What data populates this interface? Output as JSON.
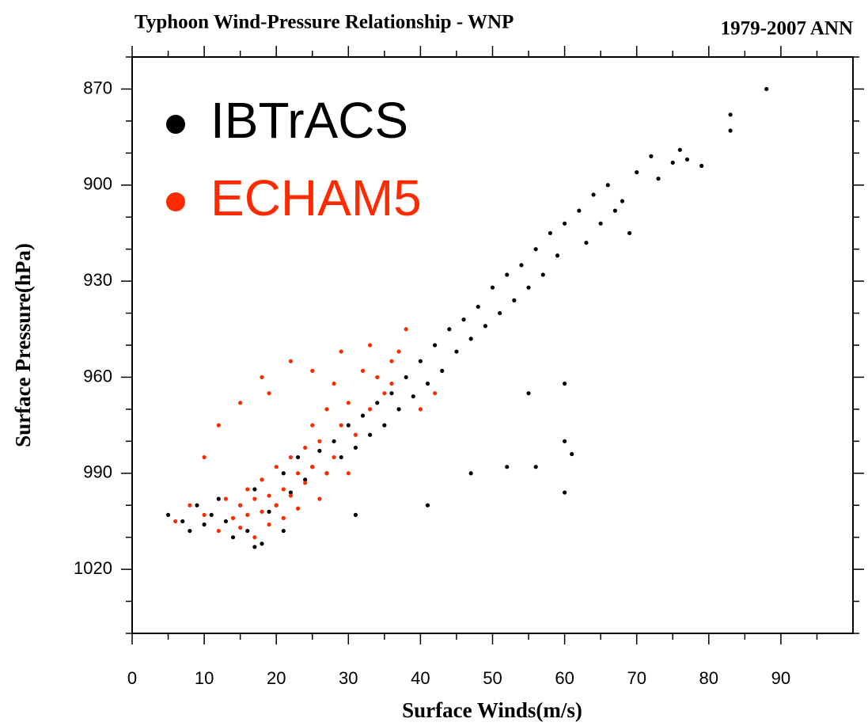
{
  "chart_data": {
    "type": "scatter",
    "title": "Typhoon Wind-Pressure Relationship - WNP",
    "subtitle": "1979-2007 ANN",
    "x_label": "Surface Winds(m/s)",
    "y_label": "Surface Pressure(hPa)",
    "xlim": [
      0,
      100
    ],
    "ylim": [
      1040,
      860
    ],
    "xticks": [
      0,
      10,
      20,
      30,
      40,
      50,
      60,
      70,
      80,
      90
    ],
    "yticks": [
      870,
      900,
      930,
      960,
      990,
      1020
    ],
    "xticks_minor": [
      5,
      15,
      25,
      35,
      45,
      55,
      65,
      75,
      85,
      95
    ],
    "yticks_minor": [
      860,
      880,
      890,
      910,
      920,
      940,
      950,
      970,
      980,
      1000,
      1010,
      1030,
      1040
    ],
    "series": [
      {
        "name": "IBTrACS",
        "color": "#000000",
        "x": [
          5,
          7,
          8,
          9,
          10,
          11,
          12,
          13,
          14,
          15,
          16,
          17,
          18,
          19,
          20,
          21,
          22,
          23,
          24,
          25,
          26,
          27,
          28,
          29,
          30,
          31,
          32,
          33,
          34,
          35,
          36,
          37,
          38,
          39,
          40,
          41,
          42,
          43,
          44,
          45,
          46,
          47,
          48,
          49,
          50,
          51,
          52,
          53,
          54,
          55,
          56,
          57,
          58,
          59,
          60,
          62,
          63,
          64,
          65,
          66,
          67,
          68,
          69,
          70,
          72,
          73,
          75,
          76,
          77,
          79,
          83,
          83,
          88,
          60,
          61,
          60,
          52,
          47,
          41,
          31,
          21,
          17,
          60,
          56,
          55
        ],
        "values": [
          1003,
          1005,
          1008,
          1000,
          1006,
          1003,
          998,
          1005,
          1010,
          1000,
          1008,
          995,
          1012,
          1002,
          1000,
          990,
          996,
          985,
          992,
          988,
          983,
          990,
          980,
          985,
          975,
          982,
          972,
          978,
          968,
          975,
          965,
          970,
          960,
          966,
          955,
          962,
          950,
          958,
          945,
          952,
          942,
          948,
          938,
          944,
          932,
          940,
          928,
          936,
          925,
          932,
          920,
          928,
          915,
          922,
          912,
          908,
          918,
          903,
          912,
          900,
          908,
          905,
          915,
          896,
          891,
          898,
          893,
          889,
          892,
          894,
          883,
          878,
          870,
          996,
          984,
          980,
          988,
          990,
          1000,
          1003,
          1008,
          1013,
          962,
          988,
          965
        ]
      },
      {
        "name": "ECHAM5",
        "color": "#ff2a00",
        "x": [
          6,
          8,
          10,
          12,
          13,
          14,
          15,
          15,
          16,
          16,
          17,
          17,
          18,
          18,
          19,
          19,
          20,
          20,
          21,
          21,
          22,
          22,
          23,
          23,
          24,
          24,
          25,
          25,
          26,
          26,
          27,
          27,
          28,
          28,
          29,
          30,
          30,
          31,
          32,
          33,
          34,
          35,
          36,
          37,
          38,
          36,
          22,
          18,
          15,
          12,
          10,
          19,
          25,
          29,
          33,
          40,
          42
        ],
        "values": [
          1005,
          1000,
          1003,
          1008,
          998,
          1004,
          1000,
          1007,
          995,
          1003,
          1010,
          998,
          1002,
          992,
          1006,
          997,
          1000,
          988,
          995,
          1004,
          985,
          997,
          990,
          1001,
          982,
          993,
          975,
          988,
          998,
          980,
          970,
          990,
          985,
          962,
          975,
          968,
          990,
          978,
          958,
          970,
          960,
          965,
          955,
          952,
          945,
          962,
          955,
          960,
          968,
          975,
          985,
          965,
          958,
          952,
          950,
          970,
          965
        ]
      }
    ]
  }
}
